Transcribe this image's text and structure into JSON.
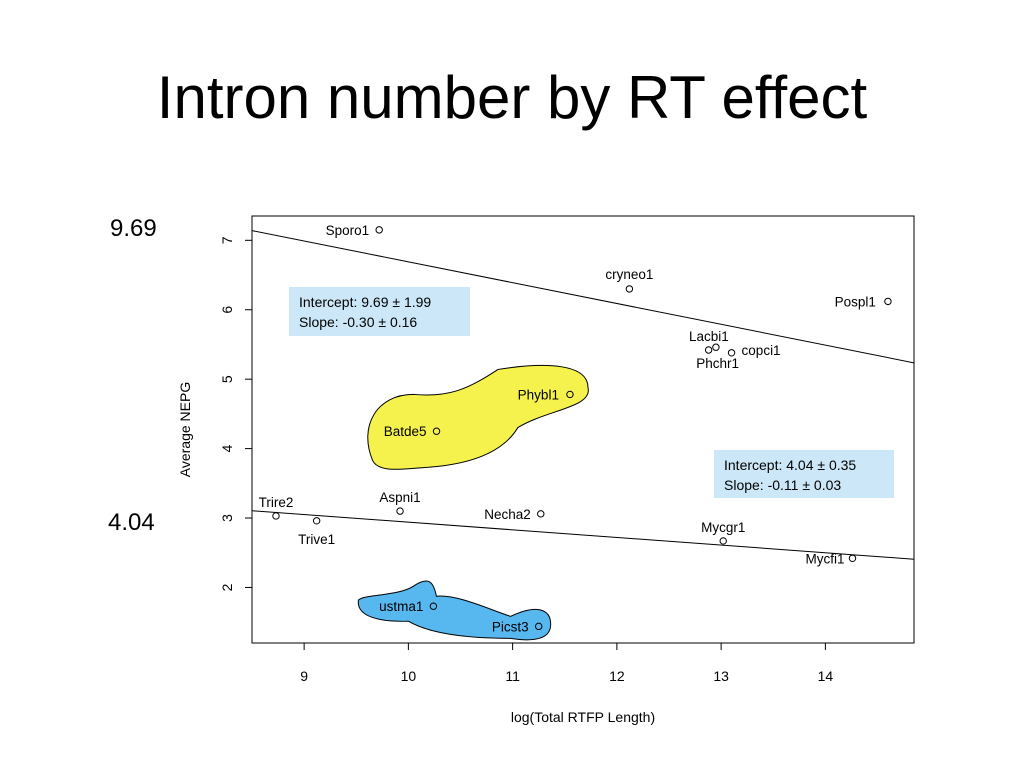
{
  "slide": {
    "title": "Intron number by RT effect",
    "left_labels": [
      "9.69",
      "4.04"
    ]
  },
  "chart_data": {
    "type": "scatter",
    "title": "",
    "xlabel": "log(Total RTFP Length)",
    "ylabel": "Average NEPG",
    "xlim": [
      8.5,
      14.85
    ],
    "ylim": [
      1.2,
      7.35
    ],
    "x_ticks": [
      9,
      10,
      11,
      12,
      13,
      14
    ],
    "y_ticks": [
      2,
      3,
      4,
      5,
      6,
      7
    ],
    "points": [
      {
        "label": "Sporo1",
        "x": 9.72,
        "y": 7.15
      },
      {
        "label": "cryneo1",
        "x": 12.12,
        "y": 6.3
      },
      {
        "label": "Pospl1",
        "x": 14.6,
        "y": 6.12
      },
      {
        "label": "Lacbi1",
        "x": 12.95,
        "y": 5.46
      },
      {
        "label": "Phchr1",
        "x": 12.88,
        "y": 5.42
      },
      {
        "label": "copci1",
        "x": 13.1,
        "y": 5.38
      },
      {
        "label": "Phybl1",
        "x": 11.55,
        "y": 4.78
      },
      {
        "label": "Batde5",
        "x": 10.27,
        "y": 4.25
      },
      {
        "label": "Trire2",
        "x": 8.73,
        "y": 3.03
      },
      {
        "label": "Trive1",
        "x": 9.12,
        "y": 2.96
      },
      {
        "label": "Aspni1",
        "x": 9.92,
        "y": 3.1
      },
      {
        "label": "Necha2",
        "x": 11.27,
        "y": 3.06
      },
      {
        "label": "Mycgr1",
        "x": 13.02,
        "y": 2.67
      },
      {
        "label": "Mycfi1",
        "x": 14.26,
        "y": 2.42
      },
      {
        "label": "ustma1",
        "x": 10.24,
        "y": 1.73
      },
      {
        "label": "Picst3",
        "x": 11.25,
        "y": 1.44
      }
    ],
    "fit_lines": [
      {
        "intercept": 9.69,
        "slope": -0.3,
        "text_lines": [
          "Intercept: 9.69 ± 1.99",
          "Slope: -0.30 ± 0.16"
        ]
      },
      {
        "intercept": 4.04,
        "slope": -0.11,
        "text_lines": [
          "Intercept: 4.04 ± 0.35",
          "Slope: -0.11 ± 0.03"
        ]
      }
    ],
    "highlight_regions": [
      {
        "color": "#f5f24d",
        "members": [
          "Phybl1",
          "Batde5"
        ]
      },
      {
        "color": "#57b8ef",
        "members": [
          "ustma1",
          "Picst3"
        ]
      }
    ],
    "annotation_box_color": "#cce8f8",
    "grid": false,
    "legend": "none"
  }
}
